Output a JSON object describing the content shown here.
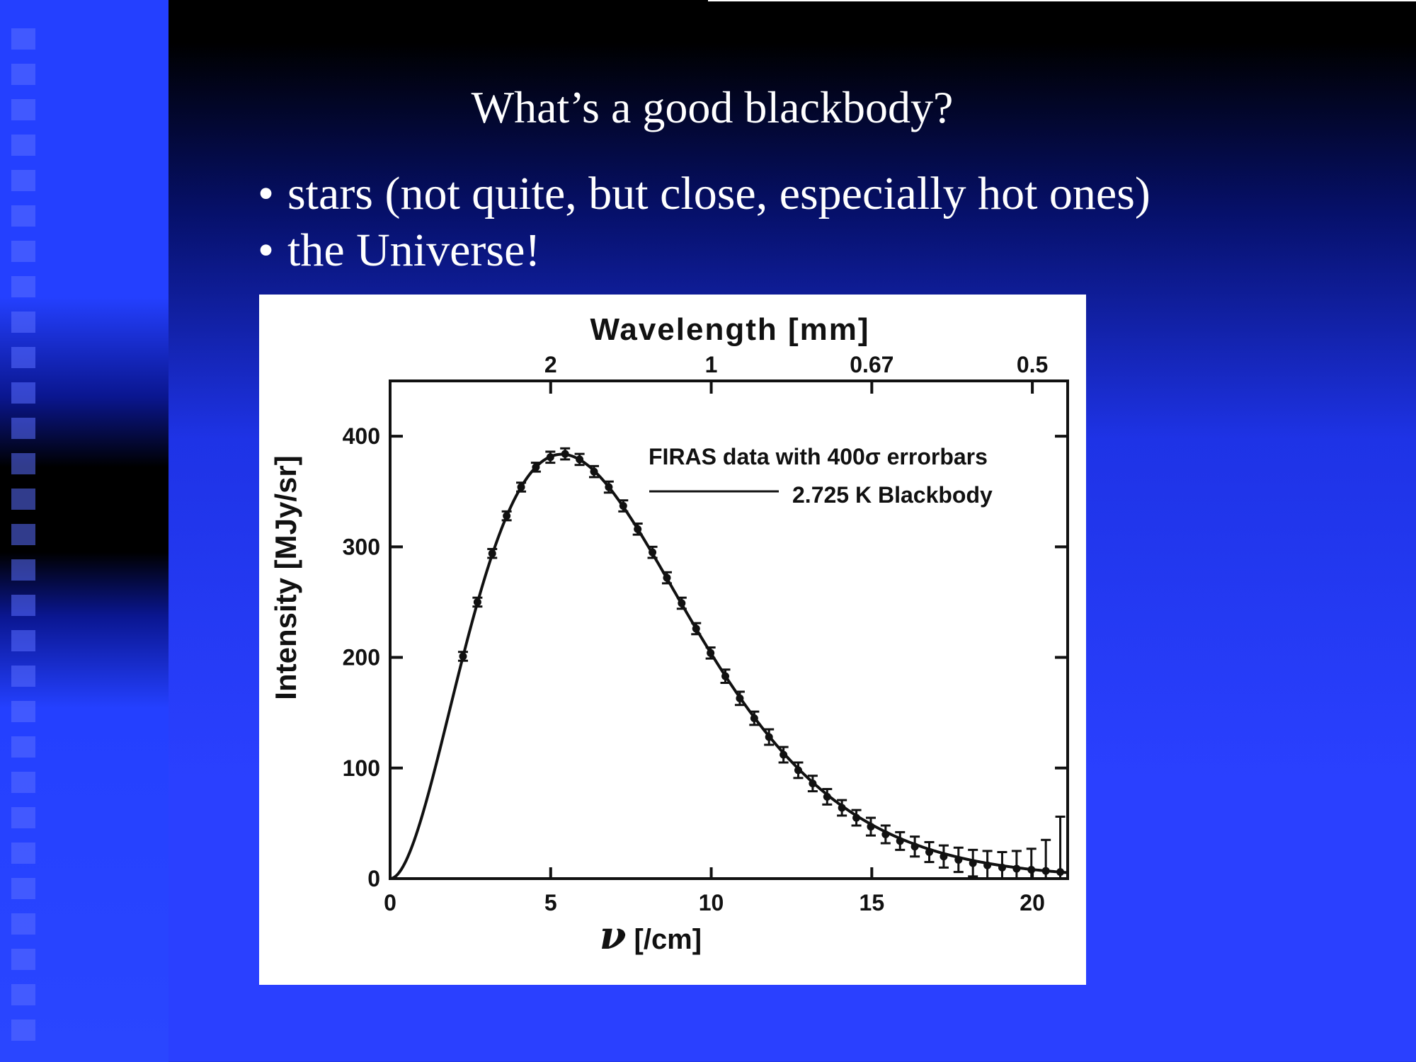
{
  "slide": {
    "title": "What’s a good blackbody?",
    "bullets": [
      {
        "bullet": "•",
        "text": "stars (not quite, but close, especially hot ones)"
      },
      {
        "bullet": "•",
        "text": "the Universe!"
      }
    ]
  },
  "colors": {
    "slide_background": "#2a40ff",
    "text": "#ffffff",
    "plot_background": "#ffffff",
    "plot_ink": "#111111"
  },
  "chart_data": {
    "type": "line",
    "title": "",
    "xlabel": "ν [/cm]",
    "ylabel": "Intensity [MJy/sr]",
    "x2label": "Wavelength [mm]",
    "xlim": [
      0,
      21.1
    ],
    "ylim": [
      0,
      450
    ],
    "x_ticks": [
      0,
      5,
      10,
      15,
      20
    ],
    "y_ticks": [
      0,
      100,
      200,
      300,
      400
    ],
    "top_ticks": [
      {
        "label": "2",
        "nu": 5
      },
      {
        "label": "1",
        "nu": 10
      },
      {
        "label": "0.67",
        "nu": 15
      },
      {
        "label": "0.5",
        "nu": 20
      }
    ],
    "legend_position": "top-right",
    "series": [
      {
        "name": "FIRAS data with 400σ errorbars",
        "style": "points-with-errorbars",
        "x": [
          2.27,
          2.72,
          3.18,
          3.63,
          4.08,
          4.54,
          4.99,
          5.45,
          5.9,
          6.35,
          6.81,
          7.26,
          7.71,
          8.17,
          8.62,
          9.08,
          9.53,
          9.98,
          10.44,
          10.89,
          11.34,
          11.8,
          12.25,
          12.71,
          13.16,
          13.61,
          14.07,
          14.52,
          14.97,
          15.43,
          15.88,
          16.34,
          16.79,
          17.24,
          17.7,
          18.15,
          18.6,
          19.06,
          19.51,
          19.97,
          20.42,
          20.87
        ],
        "y": [
          201,
          250,
          294,
          328,
          354,
          372,
          381,
          384,
          379,
          368,
          354,
          337,
          316,
          295,
          272,
          249,
          226,
          204,
          183,
          163,
          145,
          128,
          112,
          98,
          86,
          74,
          64,
          55,
          47,
          40,
          34,
          29,
          24,
          20,
          17,
          14,
          12,
          10,
          9,
          8,
          7,
          6
        ],
        "error": [
          4,
          4,
          4,
          4,
          4,
          4,
          5,
          5,
          5,
          5,
          5,
          5,
          5,
          5,
          5,
          5,
          5,
          5,
          6,
          6,
          6,
          7,
          7,
          7,
          7,
          7,
          7,
          7,
          8,
          8,
          8,
          9,
          9,
          10,
          11,
          12,
          13,
          14,
          16,
          19,
          28,
          50
        ]
      },
      {
        "name": "2.725 K Blackbody",
        "style": "line",
        "temperature_K": 2.725
      }
    ]
  }
}
